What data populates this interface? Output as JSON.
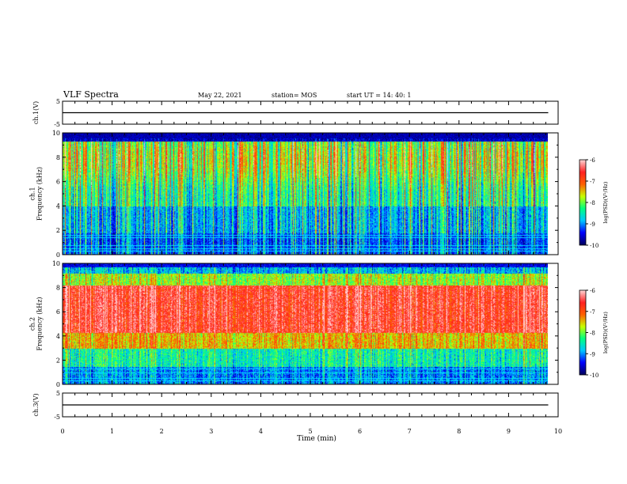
{
  "header": {
    "title": "VLF Spectra",
    "date": "May 22, 2021",
    "station": "station= MOS",
    "start": "start  UT =   14: 40: 1"
  },
  "colors": {
    "scale": [
      "#000060",
      "#0000ff",
      "#00c8ff",
      "#00ff80",
      "#c8ff00",
      "#ff6000",
      "#ff2020",
      "#ffd0d0"
    ]
  },
  "chart_data": [
    {
      "type": "line",
      "name": "ch1-voltage",
      "ylabel": "ch.1(V)",
      "ylim": [
        -5,
        5
      ],
      "yticks": [
        "5",
        "-5"
      ],
      "x": [
        0,
        9.8
      ],
      "y": [
        0,
        0
      ]
    },
    {
      "type": "heatmap",
      "name": "ch1-spectrogram",
      "ylabel": "ch.1\nFrequency (kHz)",
      "ylim": [
        0,
        10
      ],
      "yticks": [
        "0",
        "2",
        "4",
        "6",
        "8",
        "10"
      ],
      "xlim": [
        0,
        10
      ],
      "data_xmax": 9.8,
      "colorbar": {
        "label": "log(PSD)(V²/Hz)",
        "ticks": [
          "-6",
          "-7",
          "-8",
          "-9",
          "-10"
        ],
        "range": [
          -10,
          -6
        ]
      },
      "lines_khz": [
        0.35,
        0.55,
        0.75,
        1.45,
        1.65
      ]
    },
    {
      "type": "heatmap",
      "name": "ch2-spectrogram",
      "ylabel": "ch.2\nFrequency (kHz)",
      "ylim": [
        0,
        10
      ],
      "yticks": [
        "0",
        "2",
        "4",
        "6",
        "8",
        "10"
      ],
      "xlim": [
        0,
        10
      ],
      "data_xmax": 9.8,
      "colorbar": {
        "label": "log(PSD)(V²/Hz)",
        "ticks": [
          "-6",
          "-7",
          "-8",
          "-9",
          "-10"
        ],
        "range": [
          -10,
          -6
        ]
      },
      "lines_khz": [
        0.35,
        0.55,
        1.0,
        1.3
      ]
    },
    {
      "type": "line",
      "name": "ch3-voltage",
      "ylabel": "ch.3(V)",
      "ylim": [
        -5,
        5
      ],
      "yticks": [
        "5",
        "-5"
      ],
      "x": [
        0,
        9.8
      ],
      "y": [
        0,
        0
      ]
    }
  ],
  "xaxis": {
    "label": "Time (min)",
    "ticks": [
      "0",
      "1",
      "2",
      "3",
      "4",
      "5",
      "6",
      "7",
      "8",
      "9",
      "10"
    ]
  }
}
